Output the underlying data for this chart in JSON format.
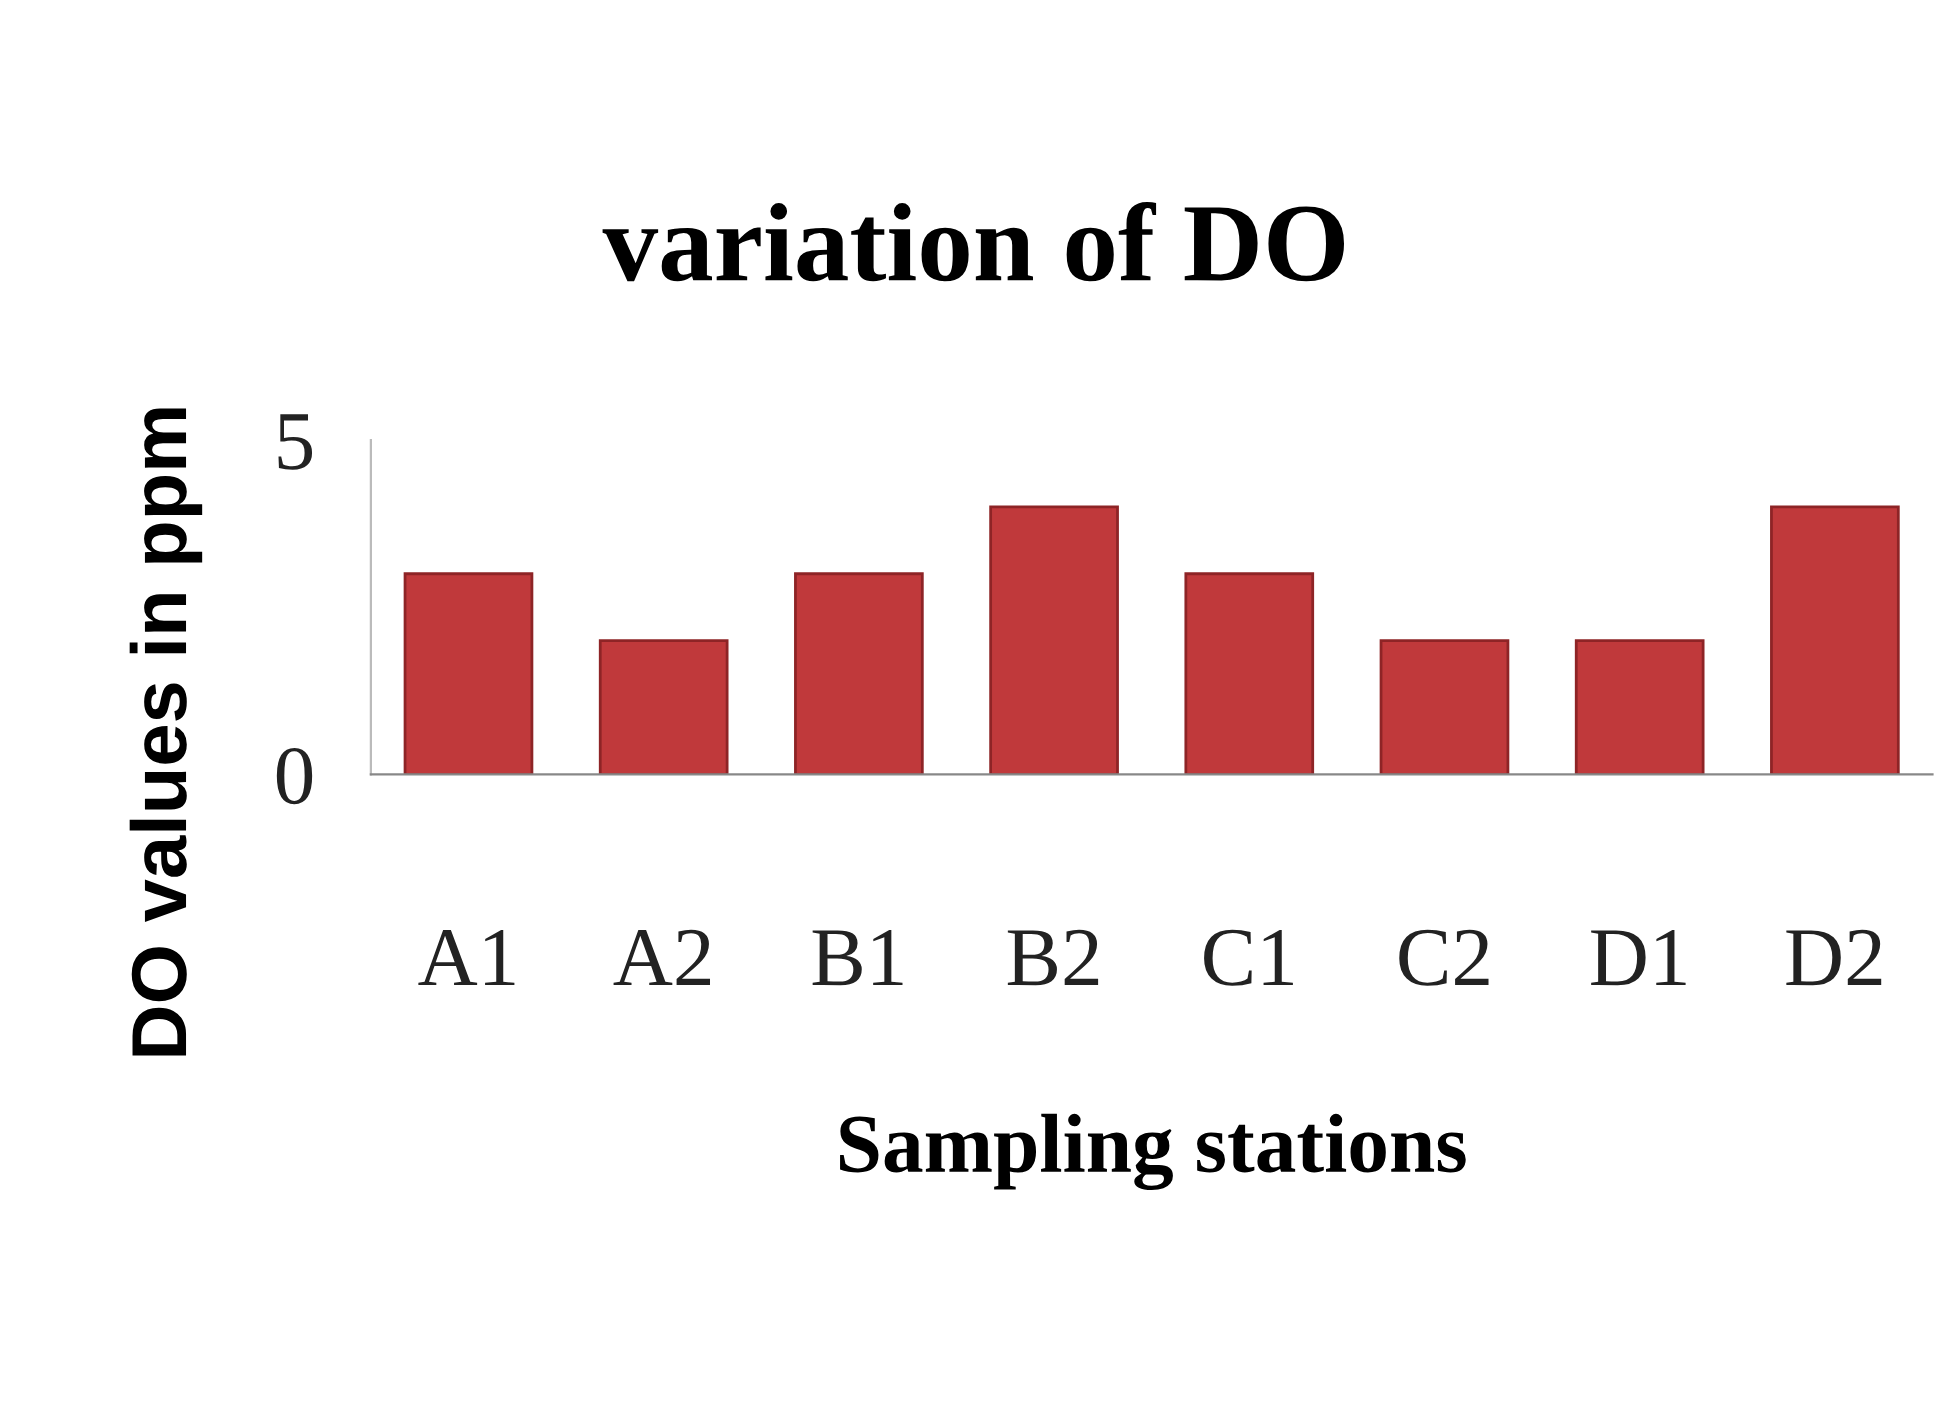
{
  "chart_data": {
    "type": "bar",
    "title": "variation of DO",
    "xlabel": "Sampling stations",
    "ylabel": "DO values in ppm",
    "categories": [
      "A1",
      "A2",
      "B1",
      "B2",
      "C1",
      "C2",
      "D1",
      "D2"
    ],
    "values": [
      3,
      2,
      3,
      4,
      3,
      2,
      2,
      4
    ],
    "color": "#c0393b",
    "ylim": [
      0,
      5
    ],
    "yticks": [
      0,
      5
    ],
    "grid": false,
    "legend": false
  }
}
